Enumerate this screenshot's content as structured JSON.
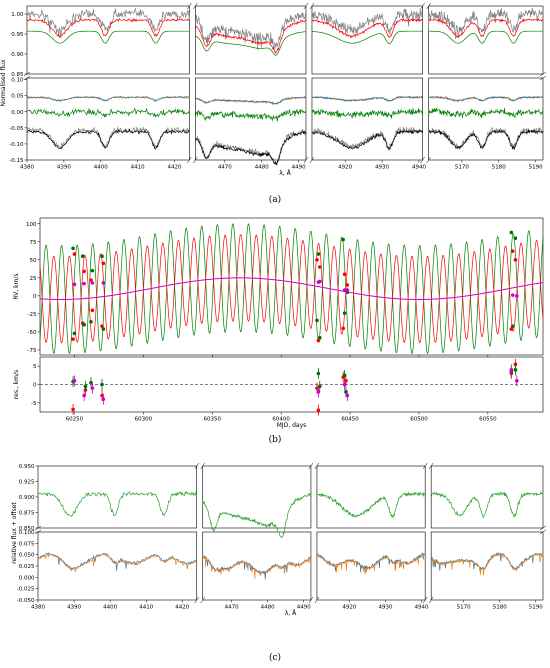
{
  "captions": {
    "a": "(a)",
    "b": "(b)",
    "c": "(c)"
  },
  "chart_data": [
    {
      "id": "a",
      "type": "line",
      "title": "",
      "xlabel": "λ, Å",
      "ylabel": "Normalised flux",
      "grid": false,
      "x_segments": [
        {
          "range": [
            4380,
            4424
          ],
          "ticks": [
            4380,
            4390,
            4400,
            4410,
            4420
          ],
          "lines": [
            [
              4388.9,
              2
            ],
            [
              4401.2,
              1
            ],
            [
              4414.9,
              1
            ]
          ]
        },
        {
          "range": [
            4462,
            4492
          ],
          "ticks": [
            4470,
            4480,
            4490
          ],
          "lines": [
            [
              4471.5,
              7
            ],
            [
              4481.2,
              4
            ],
            [
              4465,
              1
            ],
            [
              4484,
              1
            ]
          ]
        },
        {
          "range": [
            4911,
            4941
          ],
          "ticks": [
            4920,
            4930,
            4940
          ],
          "lines": [
            [
              4921.9,
              4
            ],
            [
              4932,
              1
            ]
          ]
        },
        {
          "range": [
            5161,
            5192
          ],
          "ticks": [
            5170,
            5180,
            5190
          ],
          "lines": [
            [
              5169,
              2
            ],
            [
              5175.5,
              1
            ],
            [
              5184,
              1
            ]
          ]
        }
      ],
      "y_upper": {
        "range": [
          0.85,
          1.02
        ],
        "ticks": [
          0.85,
          0.9,
          0.95,
          1.0
        ]
      },
      "y_lower": {
        "range": [
          -0.15,
          0.105
        ],
        "ticks": [
          -0.15,
          -0.1,
          -0.05,
          0.0,
          0.05,
          0.1
        ]
      },
      "series": [
        {
          "role": "observed spectrum",
          "panel": "upper",
          "color": "#808080",
          "level": 1.0,
          "noise": 0.016
        },
        {
          "role": "composite model",
          "panel": "upper",
          "color": "#ff0000",
          "level": 0.985,
          "noise": 0.004
        },
        {
          "role": "component model",
          "panel": "upper",
          "color": "#008000",
          "level": 0.957,
          "noise": 0.0
        },
        {
          "role": "disentangled component",
          "panel": "lower",
          "color": "#ff7f0e",
          "level": 0.045,
          "noise": 0.004
        },
        {
          "role": "disentangled component",
          "panel": "lower",
          "color": "#1f77b4",
          "level": 0.045,
          "noise": 0.003
        },
        {
          "role": "disentangled component",
          "panel": "lower",
          "color": "#008000",
          "level": 0.0,
          "noise": 0.012
        },
        {
          "role": "residual spectrum",
          "panel": "lower",
          "color": "#808080",
          "level": -0.058,
          "noise": 0.012
        },
        {
          "role": "model",
          "panel": "lower",
          "color": "#000000",
          "level": -0.062,
          "noise": 0.006
        }
      ]
    },
    {
      "id": "b",
      "type": "line",
      "title": "",
      "xlabel": "MJD, days",
      "ylabel": "RV, km/s",
      "ylabel_residual": "res., km/s",
      "grid": false,
      "xlim": [
        60225,
        60590
      ],
      "xticks": [
        60250,
        60300,
        60350,
        60400,
        60450,
        60500,
        60550
      ],
      "ylim": [
        -82,
        108
      ],
      "yticks": [
        -75,
        -50,
        -25,
        0,
        25,
        50,
        75,
        100
      ],
      "res_ylim": [
        -7.5,
        7.5
      ],
      "res_yticks": [
        -5,
        0,
        5
      ],
      "orbit": {
        "period_days": 11.3,
        "amplitude_red": 60,
        "amplitude_green": 75,
        "phase_ref": 60252
      },
      "systemic": {
        "center": 60370,
        "amplitude": 15,
        "period_days": 260,
        "offset": 10
      },
      "observations_red": [
        [
          60249,
          -60
        ],
        [
          60250,
          58
        ],
        [
          60256,
          -38
        ],
        [
          60257,
          34
        ],
        [
          60262,
          22
        ],
        [
          60263,
          -20
        ],
        [
          60270,
          -42
        ],
        [
          60271,
          45
        ],
        [
          60426,
          50
        ],
        [
          60427,
          -62
        ],
        [
          60428,
          40
        ],
        [
          60445,
          -45
        ],
        [
          60446,
          30
        ],
        [
          60448,
          15
        ],
        [
          60567,
          -46
        ],
        [
          60568,
          62
        ],
        [
          60570,
          50
        ]
      ],
      "observations_green": [
        [
          60249,
          66
        ],
        [
          60250,
          -52
        ],
        [
          60256,
          55
        ],
        [
          60257,
          -40
        ],
        [
          60262,
          -36
        ],
        [
          60263,
          35
        ],
        [
          60270,
          55
        ],
        [
          60271,
          -46
        ],
        [
          60426,
          -34
        ],
        [
          60427,
          58
        ],
        [
          60428,
          -58
        ],
        [
          60445,
          78
        ],
        [
          60446,
          -24
        ],
        [
          60448,
          5
        ],
        [
          60567,
          88
        ],
        [
          60568,
          -42
        ],
        [
          60570,
          80
        ]
      ],
      "observations_magenta": [
        [
          60250,
          16
        ],
        [
          60257,
          17
        ],
        [
          60263,
          18
        ],
        [
          60271,
          18
        ],
        [
          60427,
          19
        ],
        [
          60428,
          20
        ],
        [
          60446,
          8
        ],
        [
          60448,
          8
        ],
        [
          60568,
          1
        ],
        [
          60571,
          0
        ]
      ],
      "residuals_red": [
        [
          60249,
          -6.8
        ],
        [
          60258,
          -1.5
        ],
        [
          60270,
          -3
        ],
        [
          60426,
          -1
        ],
        [
          60427,
          -7
        ],
        [
          60445,
          2
        ],
        [
          60447,
          1
        ],
        [
          60567,
          3
        ],
        [
          60570,
          5.5
        ]
      ],
      "residuals_green": [
        [
          60249,
          0.8
        ],
        [
          60258,
          -0.5
        ],
        [
          60262,
          0.5
        ],
        [
          60270,
          0
        ],
        [
          60427,
          3
        ],
        [
          60428,
          -0.5
        ],
        [
          60446,
          2.5
        ],
        [
          60447,
          -2
        ],
        [
          60567,
          3.5
        ],
        [
          60570,
          4
        ]
      ],
      "residuals_magenta": [
        [
          60250,
          1
        ],
        [
          60257,
          -3
        ],
        [
          60263,
          -1
        ],
        [
          60271,
          -4
        ],
        [
          60427,
          -2
        ],
        [
          60446,
          0
        ],
        [
          60448,
          -3
        ],
        [
          60567,
          4
        ],
        [
          60571,
          1
        ]
      ]
    },
    {
      "id": "c",
      "type": "line",
      "title": "",
      "xlabel": "λ, Å",
      "ylabel": "relative flux + offset",
      "grid": false,
      "x_segments": [
        {
          "range": [
            4380,
            4424
          ],
          "ticks": [
            4380,
            4390,
            4400,
            4410,
            4420
          ],
          "lines": [
            [
              4388.9,
              2
            ],
            [
              4401.2,
              1
            ],
            [
              4414.9,
              1
            ]
          ]
        },
        {
          "range": [
            4462,
            4492
          ],
          "ticks": [
            4470,
            4480,
            4490
          ],
          "lines": [
            [
              4471.5,
              7
            ],
            [
              4481.2,
              4
            ],
            [
              4465,
              1
            ],
            [
              4484,
              1
            ]
          ]
        },
        {
          "range": [
            4911,
            4941
          ],
          "ticks": [
            4920,
            4930,
            4940
          ],
          "lines": [
            [
              4921.9,
              4
            ],
            [
              4932,
              1
            ]
          ]
        },
        {
          "range": [
            5161,
            5192
          ],
          "ticks": [
            5170,
            5180,
            5190
          ],
          "lines": [
            [
              5169,
              2
            ],
            [
              5175.5,
              1
            ],
            [
              5184,
              1
            ]
          ]
        }
      ],
      "y_upper": {
        "range": [
          0.85,
          0.95
        ],
        "ticks": [
          0.85,
          0.875,
          0.9,
          0.925,
          0.95
        ]
      },
      "y_lower": {
        "range": [
          -0.05,
          0.1
        ],
        "ticks": [
          -0.05,
          -0.025,
          0.0,
          0.025,
          0.05,
          0.075,
          0.1
        ]
      },
      "series": [
        {
          "role": "primary spectrum",
          "panel": "upper",
          "color": "#2ca02c",
          "level": 0.905,
          "noise": 0.004
        },
        {
          "role": "spectrum",
          "panel": "lower",
          "color": "#1f77b4",
          "level": 0.042,
          "noise": 0.004
        },
        {
          "role": "spectrum",
          "panel": "lower",
          "color": "#ff7f0e",
          "level": 0.04,
          "noise": 0.003
        }
      ]
    }
  ]
}
